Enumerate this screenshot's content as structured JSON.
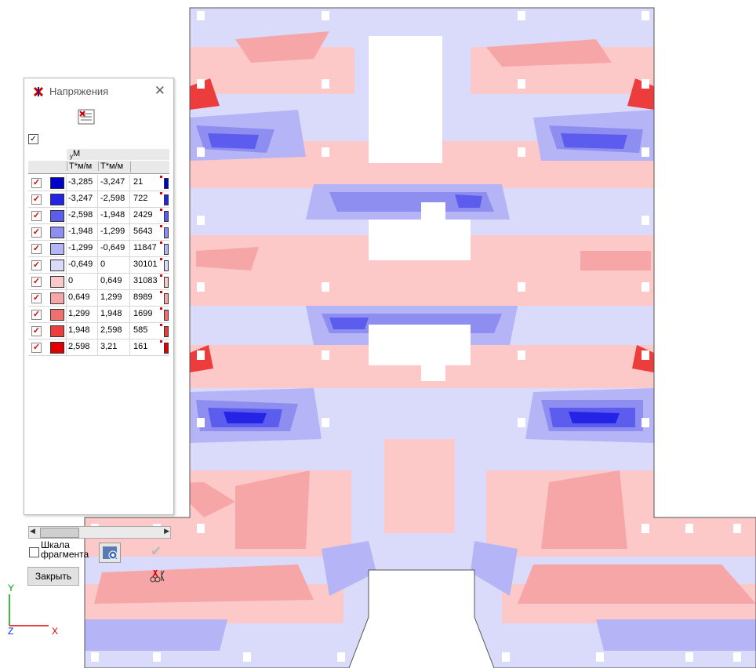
{
  "window": {
    "title": "Напряжения",
    "close_glyph": "✕"
  },
  "legend": {
    "component": "M",
    "component_sub": "y",
    "unit1": "Т*м/м",
    "unit2": "Т*м/м",
    "rows": [
      {
        "from": "-3,285",
        "to": "-3,247",
        "count": "21",
        "color": "#0000cc"
      },
      {
        "from": "-3,247",
        "to": "-2,598",
        "count": "722",
        "color": "#2424e6"
      },
      {
        "from": "-2,598",
        "to": "-1,948",
        "count": "2429",
        "color": "#5c5cee"
      },
      {
        "from": "-1,948",
        "to": "-1,299",
        "count": "5643",
        "color": "#8e8ef0"
      },
      {
        "from": "-1,299",
        "to": "-0,649",
        "count": "11847",
        "color": "#b4b4f6"
      },
      {
        "from": "-0,649",
        "to": "0",
        "count": "30101",
        "color": "#dadafa"
      },
      {
        "from": "0",
        "to": "0,649",
        "count": "31083",
        "color": "#fcc8c8"
      },
      {
        "from": "0,649",
        "to": "1,299",
        "count": "8989",
        "color": "#f6a6a6"
      },
      {
        "from": "1,299",
        "to": "1,948",
        "count": "1699",
        "color": "#f07070"
      },
      {
        "from": "1,948",
        "to": "2,598",
        "count": "585",
        "color": "#ec3c3c"
      },
      {
        "from": "2,598",
        "to": "3,21",
        "count": "161",
        "color": "#e00000"
      }
    ]
  },
  "controls": {
    "scale_label_line1": "Шкала",
    "scale_label_line2": "фрагмента",
    "close_button": "Закрыть",
    "ok_glyph": "✔"
  },
  "axes": {
    "y": "Y",
    "z": "Z",
    "x": "X"
  }
}
